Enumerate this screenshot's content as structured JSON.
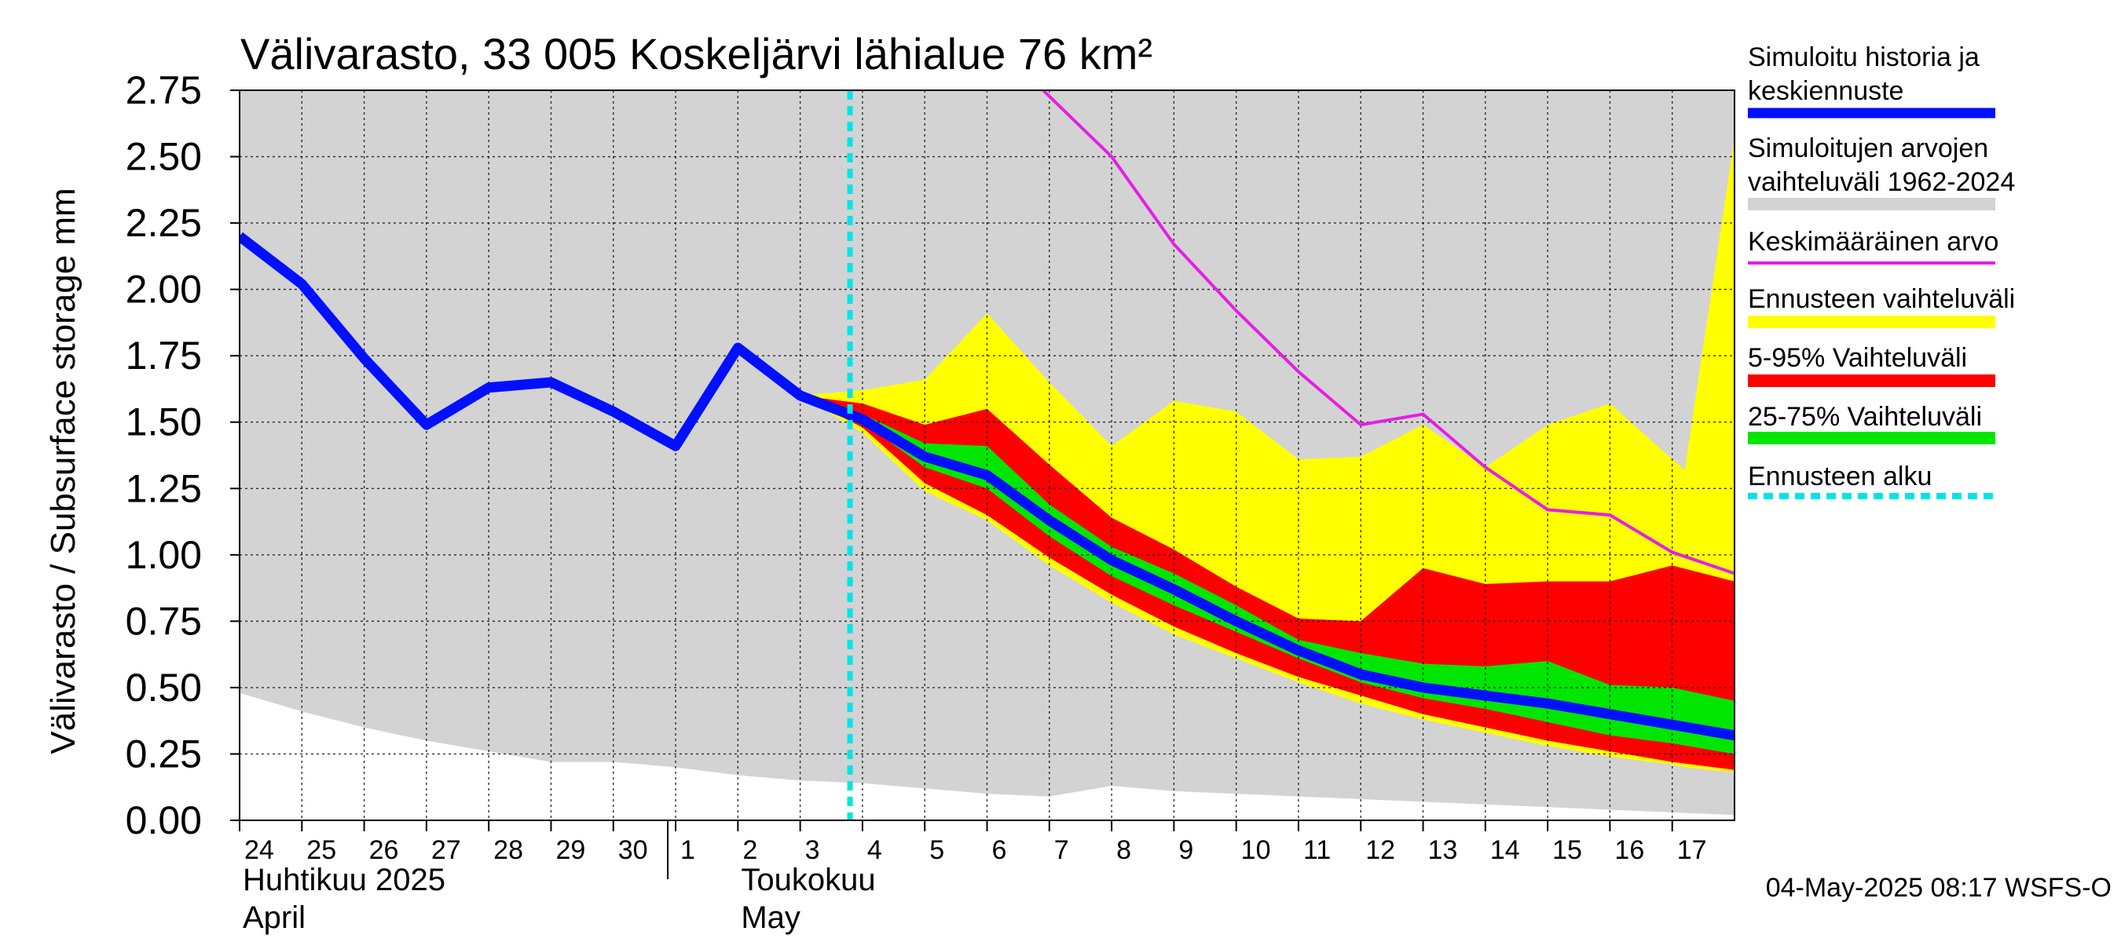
{
  "chart_data": {
    "type": "area",
    "title": "Välivarasto, 33 005 Koskeljärvi lähialue 76 km²",
    "ylabel": "Välivarasto / Subsurface storage  mm",
    "ylim": [
      0,
      2.75
    ],
    "yticks": [
      "0.00",
      "0.25",
      "0.50",
      "0.75",
      "1.00",
      "1.25",
      "1.50",
      "1.75",
      "2.00",
      "2.25",
      "2.50",
      "2.75"
    ],
    "grid": true,
    "x_start_day": 24,
    "x_end_day": 48,
    "x_tick_labels": [
      "24",
      "25",
      "26",
      "27",
      "28",
      "29",
      "30",
      "1",
      "2",
      "3",
      "4",
      "5",
      "6",
      "7",
      "8",
      "9",
      "10",
      "11",
      "12",
      "13",
      "14",
      "15",
      "16",
      "17"
    ],
    "x_tick_values": [
      24,
      25,
      26,
      27,
      28,
      29,
      30,
      31,
      32,
      33,
      34,
      35,
      36,
      37,
      38,
      39,
      40,
      41,
      42,
      43,
      44,
      45,
      46,
      47
    ],
    "month_labels": [
      {
        "line1": "Huhtikuu  2025",
        "line2": "April",
        "day": 24
      },
      {
        "line1": "Toukokuu",
        "line2": "May",
        "day": 32
      }
    ],
    "month_separator_day": 31,
    "forecast_start_day": 33.8,
    "timestamp": "04-May-2025 08:17 WSFS-O",
    "series": {
      "history_range": {
        "x": [
          24,
          25,
          26,
          27,
          28,
          29,
          30,
          31,
          32,
          33,
          34,
          35,
          36,
          37,
          38,
          39,
          40,
          41,
          42,
          43,
          44,
          45,
          46,
          47,
          48
        ],
        "upper": [
          2.75,
          2.75,
          2.75,
          2.75,
          2.75,
          2.75,
          2.75,
          2.75,
          2.75,
          2.75,
          2.75,
          2.75,
          2.75,
          2.75,
          2.75,
          2.75,
          2.75,
          2.75,
          2.75,
          2.75,
          2.75,
          2.75,
          2.75,
          2.75,
          2.75
        ],
        "lower": [
          0.48,
          0.41,
          0.35,
          0.3,
          0.26,
          0.22,
          0.22,
          0.2,
          0.17,
          0.15,
          0.14,
          0.12,
          0.1,
          0.09,
          0.13,
          0.11,
          0.1,
          0.09,
          0.08,
          0.07,
          0.06,
          0.05,
          0.04,
          0.03,
          0.02
        ]
      },
      "mean": {
        "x": [
          36.9,
          38,
          39,
          40,
          41,
          42,
          43,
          44,
          45,
          46,
          47,
          48
        ],
        "values": [
          2.75,
          2.5,
          2.17,
          1.92,
          1.69,
          1.49,
          1.53,
          1.33,
          1.17,
          1.15,
          1.01,
          0.93
        ]
      },
      "forecast_range": {
        "x": [
          33,
          34,
          35,
          36,
          37,
          38,
          39,
          40,
          41,
          42,
          43,
          44,
          45,
          46,
          47,
          47.2,
          48
        ],
        "upper": [
          1.6,
          1.62,
          1.66,
          1.91,
          1.65,
          1.41,
          1.58,
          1.54,
          1.36,
          1.37,
          1.49,
          1.33,
          1.49,
          1.57,
          1.36,
          1.32,
          2.57
        ],
        "lower": [
          1.6,
          1.46,
          1.24,
          1.13,
          0.96,
          0.82,
          0.7,
          0.61,
          0.52,
          0.44,
          0.38,
          0.33,
          0.28,
          0.24,
          0.21,
          0.2,
          0.18
        ]
      },
      "p5_95": {
        "x": [
          33,
          34,
          35,
          36,
          37,
          38,
          39,
          40,
          41,
          42,
          43,
          44,
          45,
          46,
          47,
          48
        ],
        "upper": [
          1.6,
          1.57,
          1.49,
          1.55,
          1.34,
          1.14,
          1.02,
          0.88,
          0.76,
          0.75,
          0.95,
          0.89,
          0.9,
          0.9,
          0.96,
          0.9
        ],
        "lower": [
          1.6,
          1.48,
          1.27,
          1.15,
          0.99,
          0.85,
          0.73,
          0.63,
          0.54,
          0.47,
          0.4,
          0.35,
          0.3,
          0.26,
          0.22,
          0.19
        ]
      },
      "p25_75": {
        "x": [
          33,
          34,
          35,
          36,
          37,
          38,
          39,
          40,
          41,
          42,
          43,
          44,
          45,
          46,
          47,
          48
        ],
        "upper": [
          1.6,
          1.53,
          1.42,
          1.41,
          1.19,
          1.03,
          0.93,
          0.81,
          0.68,
          0.63,
          0.59,
          0.58,
          0.6,
          0.51,
          0.5,
          0.45
        ],
        "lower": [
          1.6,
          1.5,
          1.33,
          1.25,
          1.07,
          0.92,
          0.81,
          0.71,
          0.61,
          0.52,
          0.46,
          0.42,
          0.37,
          0.32,
          0.29,
          0.25
        ]
      },
      "simulated": {
        "x": [
          24,
          25,
          26,
          27,
          28,
          29,
          30,
          31,
          32,
          33,
          34,
          35,
          36,
          37,
          38,
          39,
          40,
          41,
          42,
          43,
          44,
          45,
          46,
          47,
          48
        ],
        "values": [
          2.2,
          2.02,
          1.74,
          1.49,
          1.63,
          1.65,
          1.54,
          1.41,
          1.78,
          1.6,
          1.51,
          1.37,
          1.3,
          1.13,
          0.98,
          0.87,
          0.75,
          0.64,
          0.55,
          0.5,
          0.47,
          0.44,
          0.4,
          0.36,
          0.32
        ]
      }
    },
    "legend": [
      {
        "lines": [
          "Simuloitu historia ja",
          "keskiennuste"
        ],
        "color": "#0010ff",
        "style": "thick-line"
      },
      {
        "lines": [
          "Simuloitujen arvojen",
          "vaihteluväli 1962-2024"
        ],
        "color": "#d3d3d3",
        "style": "band"
      },
      {
        "lines": [
          "Keskimääräinen arvo"
        ],
        "color": "#e61ee6",
        "style": "line"
      },
      {
        "lines": [
          "Ennusteen vaihteluväli"
        ],
        "color": "#ffff00",
        "style": "band"
      },
      {
        "lines": [
          "5-95% Vaihteluväli"
        ],
        "color": "#ff0000",
        "style": "band"
      },
      {
        "lines": [
          "25-75% Vaihteluväli"
        ],
        "color": "#00e600",
        "style": "band"
      },
      {
        "lines": [
          "Ennusteen alku"
        ],
        "color": "#00e5e5",
        "style": "dashed"
      }
    ],
    "colors": {
      "history_range": "#d3d3d3",
      "forecast_range": "#ffff00",
      "p5_95": "#ff0000",
      "p25_75": "#00e600",
      "simulated": "#0010ff",
      "mean": "#e61ee6",
      "forecast_start": "#00e5e5"
    }
  }
}
